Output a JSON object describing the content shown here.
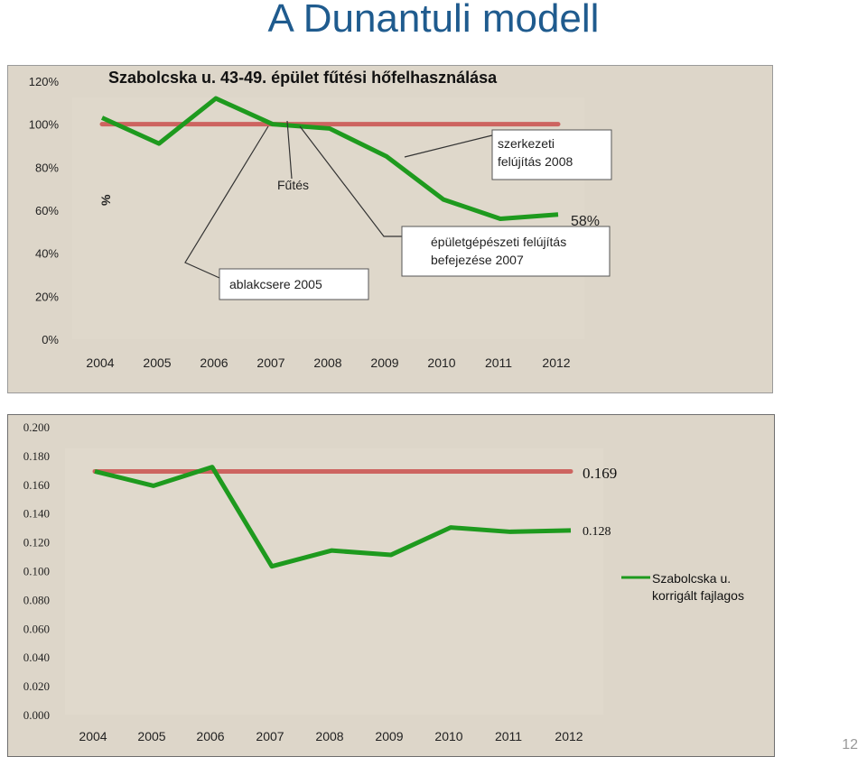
{
  "slide": {
    "title": "A Dunantuli modell",
    "page_number": "12"
  },
  "colors": {
    "series": "#1e9a1e",
    "reference": "#cd6460",
    "title": "#1f5b8e"
  },
  "chart_data": [
    {
      "type": "line",
      "title": "Szabolcska u. 43-49. épület fűtési hőfelhasználása",
      "ylabel": "%",
      "x": [
        "2004",
        "2005",
        "2006",
        "2007",
        "2008",
        "2009",
        "2010",
        "2011",
        "2012"
      ],
      "yticks": [
        "0%",
        "20%",
        "40%",
        "60%",
        "80%",
        "100%",
        "120%"
      ],
      "ylim": [
        0,
        120
      ],
      "series": [
        {
          "name": "Fűtés",
          "values": [
            103,
            91,
            112,
            100,
            98,
            85,
            65,
            56,
            58
          ]
        },
        {
          "values": [
            100,
            100,
            100,
            100,
            100,
            100,
            100,
            100,
            100
          ]
        }
      ],
      "end_label": "58%",
      "annotations": {
        "futes": "Fűtés",
        "ablakcsere": "ablakcsere 2005",
        "szerkezeti_line1": "szerkezeti",
        "szerkezeti_line2": "felújítás  2008",
        "epuletgepeszeti_line1": "épületgépészeti felújítás",
        "epuletgepeszeti_line2": "befejezése 2007"
      }
    },
    {
      "type": "line",
      "x": [
        "2004",
        "2005",
        "2006",
        "2007",
        "2008",
        "2009",
        "2010",
        "2011",
        "2012"
      ],
      "yticks": [
        "0.000",
        "0.020",
        "0.040",
        "0.060",
        "0.080",
        "0.100",
        "0.120",
        "0.140",
        "0.160",
        "0.180",
        "0.200"
      ],
      "ylim": [
        0,
        0.2
      ],
      "series": [
        {
          "name": "Szabolcska u. korrigált fajlagos",
          "values": [
            0.169,
            0.159,
            0.172,
            0.103,
            0.114,
            0.111,
            0.13,
            0.127,
            0.128
          ]
        },
        {
          "values": [
            0.169,
            0.169,
            0.169,
            0.169,
            0.169,
            0.169,
            0.169,
            0.169,
            0.169
          ]
        }
      ],
      "label_top": "0.169",
      "label_bottom": "0.128",
      "legend": {
        "line1": "Szabolcska u.",
        "line2": "korrigált fajlagos",
        "position": "right"
      }
    }
  ]
}
